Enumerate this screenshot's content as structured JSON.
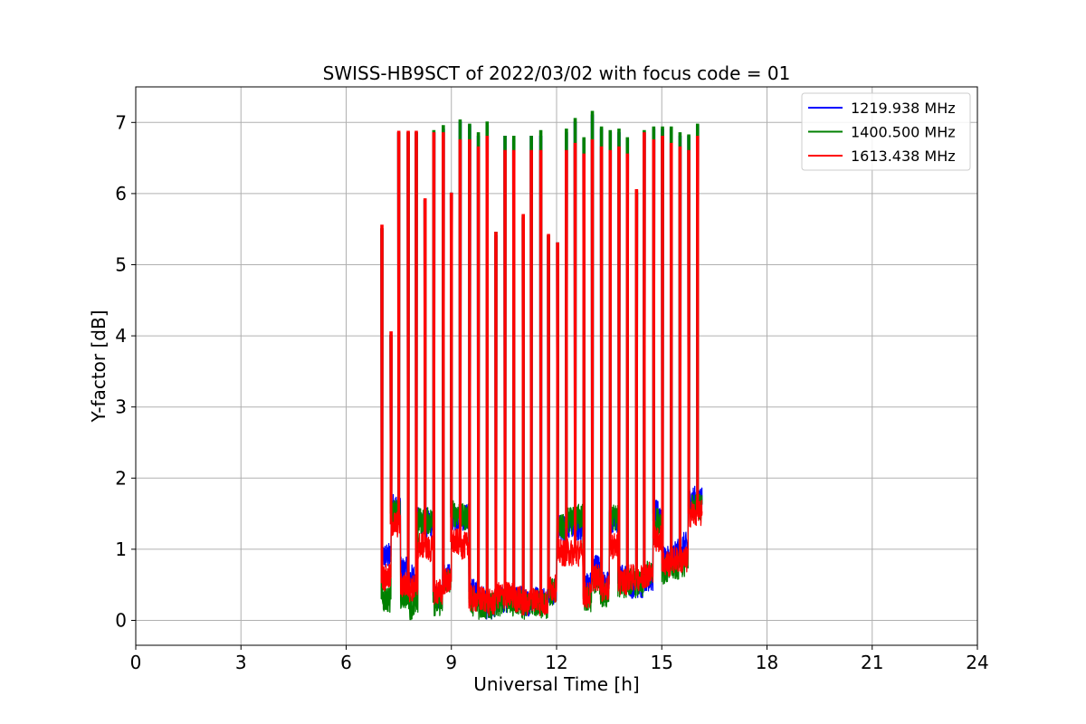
{
  "chart_data": {
    "type": "line",
    "title": "SWISS-HB9SCT of 2022/03/02 with focus code = 01",
    "xlabel": "Universal Time [h]",
    "ylabel": "Y-factor [dB]",
    "xlim": [
      0,
      24
    ],
    "ylim": [
      -0.35,
      7.5
    ],
    "xticks": [
      0,
      3,
      6,
      9,
      12,
      15,
      18,
      21,
      24
    ],
    "xtick_labels": [
      "0",
      "3",
      "6",
      "9",
      "12",
      "15",
      "18",
      "21",
      "24"
    ],
    "yticks": [
      0,
      1,
      2,
      3,
      4,
      5,
      6,
      7
    ],
    "ytick_labels": [
      "0",
      "1",
      "2",
      "3",
      "4",
      "5",
      "6",
      "7"
    ],
    "grid": true,
    "legend_position": "top-right",
    "series": [
      {
        "name": "1219.938 MHz",
        "color": "#0000ff",
        "baseline": [
          [
            7.0,
            0.9
          ],
          [
            7.28,
            1.6
          ],
          [
            7.55,
            0.7
          ],
          [
            7.8,
            0.6
          ],
          [
            8.05,
            1.4
          ],
          [
            8.3,
            1.35
          ],
          [
            8.5,
            0.35
          ],
          [
            8.75,
            0.6
          ],
          [
            9.0,
            1.45
          ],
          [
            9.25,
            1.45
          ],
          [
            9.5,
            0.4
          ],
          [
            9.75,
            0.3
          ],
          [
            10.0,
            0.2
          ],
          [
            10.25,
            0.3
          ],
          [
            10.5,
            0.3
          ],
          [
            10.75,
            0.3
          ],
          [
            11.0,
            0.25
          ],
          [
            11.25,
            0.3
          ],
          [
            11.5,
            0.3
          ],
          [
            11.75,
            0.4
          ],
          [
            12.0,
            1.3
          ],
          [
            12.25,
            1.35
          ],
          [
            12.5,
            1.3
          ],
          [
            12.75,
            0.5
          ],
          [
            13.0,
            0.75
          ],
          [
            13.25,
            0.5
          ],
          [
            13.5,
            1.4
          ],
          [
            13.75,
            0.6
          ],
          [
            14.0,
            0.5
          ],
          [
            14.25,
            0.5
          ],
          [
            14.5,
            0.6
          ],
          [
            14.75,
            1.5
          ],
          [
            15.0,
            0.85
          ],
          [
            15.25,
            0.95
          ],
          [
            15.5,
            1.05
          ],
          [
            15.75,
            1.7
          ],
          [
            16.15,
            1.7
          ]
        ],
        "spikes": [
          [
            7.02,
            5.5
          ],
          [
            7.28,
            4.0
          ],
          [
            7.5,
            6.85
          ],
          [
            7.77,
            6.85
          ],
          [
            8.0,
            6.85
          ],
          [
            8.25,
            5.9
          ],
          [
            8.5,
            6.85
          ],
          [
            8.77,
            6.9
          ],
          [
            9.0,
            6.0
          ],
          [
            9.25,
            7.0
          ],
          [
            9.52,
            6.95
          ],
          [
            9.77,
            6.8
          ],
          [
            10.02,
            6.95
          ],
          [
            10.27,
            5.4
          ],
          [
            10.53,
            6.8
          ],
          [
            10.78,
            6.75
          ],
          [
            11.05,
            5.65
          ],
          [
            11.28,
            6.8
          ],
          [
            11.55,
            6.8
          ],
          [
            11.77,
            5.4
          ],
          [
            12.03,
            5.3
          ],
          [
            12.28,
            6.85
          ],
          [
            12.53,
            7.0
          ],
          [
            12.78,
            6.75
          ],
          [
            13.02,
            7.1
          ],
          [
            13.28,
            6.9
          ],
          [
            13.53,
            6.85
          ],
          [
            13.78,
            6.85
          ],
          [
            14.02,
            6.75
          ],
          [
            14.28,
            6.0
          ],
          [
            14.5,
            6.85
          ],
          [
            14.77,
            6.9
          ],
          [
            15.02,
            6.9
          ],
          [
            15.27,
            6.9
          ],
          [
            15.52,
            6.8
          ],
          [
            15.77,
            6.8
          ],
          [
            16.02,
            6.95
          ]
        ]
      },
      {
        "name": "1400.500 MHz",
        "color": "#008000",
        "baseline": [
          [
            7.0,
            0.3
          ],
          [
            7.28,
            1.5
          ],
          [
            7.55,
            0.35
          ],
          [
            7.8,
            0.2
          ],
          [
            8.05,
            1.4
          ],
          [
            8.3,
            1.4
          ],
          [
            8.5,
            0.25
          ],
          [
            8.75,
            0.55
          ],
          [
            9.0,
            1.5
          ],
          [
            9.25,
            1.45
          ],
          [
            9.5,
            0.25
          ],
          [
            9.75,
            0.2
          ],
          [
            10.0,
            0.2
          ],
          [
            10.25,
            0.25
          ],
          [
            10.5,
            0.3
          ],
          [
            10.75,
            0.25
          ],
          [
            11.0,
            0.2
          ],
          [
            11.25,
            0.25
          ],
          [
            11.5,
            0.2
          ],
          [
            11.75,
            0.4
          ],
          [
            12.0,
            1.3
          ],
          [
            12.25,
            1.4
          ],
          [
            12.5,
            1.45
          ],
          [
            12.75,
            0.3
          ],
          [
            13.0,
            0.55
          ],
          [
            13.25,
            0.35
          ],
          [
            13.5,
            1.45
          ],
          [
            13.75,
            0.5
          ],
          [
            14.0,
            0.55
          ],
          [
            14.25,
            0.5
          ],
          [
            14.5,
            0.65
          ],
          [
            14.75,
            1.4
          ],
          [
            15.0,
            0.7
          ],
          [
            15.25,
            0.75
          ],
          [
            15.5,
            0.8
          ],
          [
            15.75,
            1.6
          ],
          [
            16.15,
            1.65
          ]
        ],
        "spikes": [
          [
            7.02,
            5.5
          ],
          [
            7.28,
            4.0
          ],
          [
            7.5,
            6.85
          ],
          [
            7.77,
            6.85
          ],
          [
            8.0,
            6.85
          ],
          [
            8.25,
            5.9
          ],
          [
            8.5,
            6.88
          ],
          [
            8.77,
            6.95
          ],
          [
            9.0,
            6.0
          ],
          [
            9.25,
            7.03
          ],
          [
            9.52,
            6.97
          ],
          [
            9.77,
            6.85
          ],
          [
            10.02,
            7.0
          ],
          [
            10.27,
            5.45
          ],
          [
            10.53,
            6.8
          ],
          [
            10.78,
            6.8
          ],
          [
            11.05,
            5.68
          ],
          [
            11.28,
            6.8
          ],
          [
            11.55,
            6.88
          ],
          [
            11.77,
            5.4
          ],
          [
            12.03,
            5.3
          ],
          [
            12.28,
            6.9
          ],
          [
            12.53,
            7.05
          ],
          [
            12.78,
            6.78
          ],
          [
            13.02,
            7.15
          ],
          [
            13.28,
            6.93
          ],
          [
            13.53,
            6.88
          ],
          [
            13.78,
            6.9
          ],
          [
            14.02,
            6.78
          ],
          [
            14.28,
            6.03
          ],
          [
            14.5,
            6.88
          ],
          [
            14.77,
            6.93
          ],
          [
            15.02,
            6.93
          ],
          [
            15.27,
            6.93
          ],
          [
            15.52,
            6.85
          ],
          [
            15.77,
            6.82
          ],
          [
            16.02,
            6.97
          ]
        ]
      },
      {
        "name": "1613.438 MHz",
        "color": "#ff0000",
        "baseline": [
          [
            7.0,
            0.6
          ],
          [
            7.28,
            1.35
          ],
          [
            7.55,
            0.5
          ],
          [
            7.8,
            0.45
          ],
          [
            8.05,
            1.05
          ],
          [
            8.3,
            1.0
          ],
          [
            8.5,
            0.4
          ],
          [
            8.75,
            0.55
          ],
          [
            9.0,
            1.1
          ],
          [
            9.25,
            1.05
          ],
          [
            9.5,
            0.3
          ],
          [
            9.75,
            0.3
          ],
          [
            10.0,
            0.25
          ],
          [
            10.25,
            0.35
          ],
          [
            10.5,
            0.35
          ],
          [
            10.75,
            0.3
          ],
          [
            11.0,
            0.25
          ],
          [
            11.25,
            0.3
          ],
          [
            11.5,
            0.25
          ],
          [
            11.75,
            0.45
          ],
          [
            12.0,
            0.95
          ],
          [
            12.25,
            0.95
          ],
          [
            12.5,
            0.95
          ],
          [
            12.75,
            0.35
          ],
          [
            13.0,
            0.6
          ],
          [
            13.25,
            0.45
          ],
          [
            13.5,
            1.05
          ],
          [
            13.75,
            0.55
          ],
          [
            14.0,
            0.6
          ],
          [
            14.25,
            0.6
          ],
          [
            14.5,
            0.65
          ],
          [
            14.75,
            1.15
          ],
          [
            15.0,
            0.8
          ],
          [
            15.25,
            0.85
          ],
          [
            15.5,
            0.85
          ],
          [
            15.75,
            1.5
          ],
          [
            16.15,
            1.5
          ]
        ],
        "spikes": [
          [
            7.02,
            5.55
          ],
          [
            7.28,
            4.05
          ],
          [
            7.5,
            6.87
          ],
          [
            7.77,
            6.87
          ],
          [
            8.0,
            6.87
          ],
          [
            8.25,
            5.92
          ],
          [
            8.5,
            6.85
          ],
          [
            8.77,
            6.85
          ],
          [
            9.0,
            6.0
          ],
          [
            9.25,
            6.75
          ],
          [
            9.52,
            6.75
          ],
          [
            9.77,
            6.65
          ],
          [
            10.02,
            6.8
          ],
          [
            10.27,
            5.45
          ],
          [
            10.53,
            6.6
          ],
          [
            10.78,
            6.6
          ],
          [
            11.05,
            5.7
          ],
          [
            11.28,
            6.6
          ],
          [
            11.55,
            6.6
          ],
          [
            11.77,
            5.42
          ],
          [
            12.03,
            5.3
          ],
          [
            12.28,
            6.6
          ],
          [
            12.53,
            6.7
          ],
          [
            12.78,
            6.55
          ],
          [
            13.02,
            6.75
          ],
          [
            13.28,
            6.65
          ],
          [
            13.53,
            6.6
          ],
          [
            13.78,
            6.65
          ],
          [
            14.02,
            6.55
          ],
          [
            14.28,
            6.05
          ],
          [
            14.5,
            6.85
          ],
          [
            14.77,
            6.75
          ],
          [
            15.02,
            6.8
          ],
          [
            15.27,
            6.7
          ],
          [
            15.52,
            6.65
          ],
          [
            15.77,
            6.6
          ],
          [
            16.02,
            6.8
          ]
        ]
      }
    ]
  }
}
